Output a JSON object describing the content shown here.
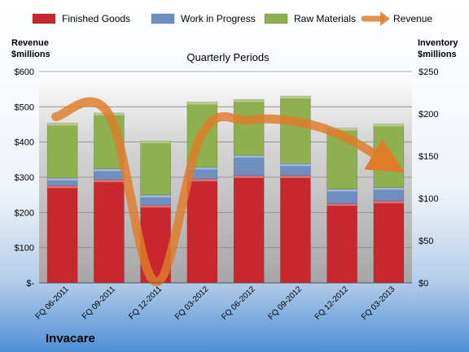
{
  "company": "Invacare",
  "chart_data": {
    "type": "bar",
    "stacked": true,
    "title": "Quarterly Periods",
    "categories": [
      "FQ 06-2011",
      "FQ 09-2011",
      "FQ 12-2011",
      "FQ 03-2012",
      "FQ 06-2012",
      "FQ 09-2012",
      "FQ 12-2012",
      "FQ 03-2013"
    ],
    "left_axis": {
      "label_line1": "Revenue",
      "label_line2": "$millions",
      "range": [
        0,
        600
      ],
      "ticks": [
        "$-",
        "$100",
        "$200",
        "$300",
        "$400",
        "$500",
        "$600"
      ]
    },
    "right_axis": {
      "label_line1": "Inventory",
      "label_line2": "$millions",
      "range": [
        0,
        250
      ],
      "ticks": [
        "$0",
        "$50",
        "$100",
        "$150",
        "$200",
        "$250"
      ]
    },
    "series": [
      {
        "name": "Finished Goods",
        "axis": "right",
        "color": "#c8282d",
        "values": [
          115,
          122,
          92,
          123,
          127,
          127,
          94,
          97
        ]
      },
      {
        "name": "Work in Progress",
        "axis": "right",
        "color": "#6f8fc1",
        "values": [
          9,
          13,
          12,
          14,
          24,
          14,
          17,
          16
        ]
      },
      {
        "name": "Raw Materials",
        "axis": "right",
        "color": "#8fb04f",
        "values": [
          65,
          66,
          64,
          77,
          66,
          80,
          72,
          75
        ]
      },
      {
        "name": "Revenue",
        "axis": "left",
        "type": "line",
        "color": "#e07b2a",
        "values": [
          472,
          478,
          3,
          424,
          462,
          458,
          418,
          340
        ]
      }
    ],
    "legend_position": "top",
    "grid": true
  }
}
